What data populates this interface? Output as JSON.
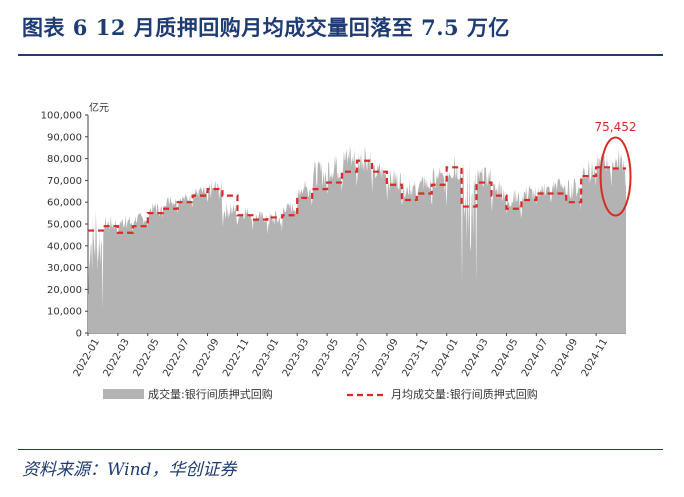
{
  "figure": {
    "title": "图表 6   12 月质押回购月均成交量回落至 7.5 万亿",
    "source": "资料来源：Wind，华创证券"
  },
  "chart_data": {
    "type": "area",
    "ylabel": "亿元",
    "ylim": [
      0,
      100000
    ],
    "yticks": [
      "0",
      "10,000",
      "20,000",
      "30,000",
      "40,000",
      "50,000",
      "60,000",
      "70,000",
      "80,000",
      "90,000",
      "100,000"
    ],
    "xlabels": [
      "2022-01",
      "2022-03",
      "2022-05",
      "2022-07",
      "2022-09",
      "2022-11",
      "2023-01",
      "2023-03",
      "2023-05",
      "2023-07",
      "2023-09",
      "2023-11",
      "2024-01",
      "2024-03",
      "2024-05",
      "2024-07",
      "2024-09",
      "2024-11"
    ],
    "months": [
      "2022-01",
      "2022-02",
      "2022-03",
      "2022-04",
      "2022-05",
      "2022-06",
      "2022-07",
      "2022-08",
      "2022-09",
      "2022-10",
      "2022-11",
      "2022-12",
      "2023-01",
      "2023-02",
      "2023-03",
      "2023-04",
      "2023-05",
      "2023-06",
      "2023-07",
      "2023-08",
      "2023-09",
      "2023-10",
      "2023-11",
      "2023-12",
      "2024-01",
      "2024-02",
      "2024-03",
      "2024-04",
      "2024-05",
      "2024-06",
      "2024-07",
      "2024-08",
      "2024-09",
      "2024-10",
      "2024-11",
      "2024-12"
    ],
    "series": [
      {
        "name": "成交量:银行间质押式回购",
        "style": "area",
        "color": "#b3b3b3",
        "monthly_min": [
          10000,
          42000,
          44000,
          47000,
          50000,
          55000,
          57000,
          59000,
          56000,
          48000,
          49000,
          47000,
          44000,
          52000,
          58000,
          60000,
          63000,
          66000,
          67000,
          64000,
          60000,
          58000,
          60000,
          57000,
          62000,
          10000,
          62000,
          55000,
          52000,
          55000,
          58000,
          61000,
          56000,
          62000,
          68000,
          67000
        ],
        "monthly_max": [
          56000,
          54000,
          54000,
          55000,
          60000,
          63000,
          64000,
          67000,
          70000,
          60000,
          58000,
          56000,
          56000,
          60000,
          70000,
          79000,
          82000,
          86000,
          86000,
          78000,
          75000,
          70000,
          72000,
          76000,
          82000,
          80000,
          76000,
          70000,
          66000,
          68000,
          69000,
          71000,
          71000,
          80000,
          83000,
          84000
        ]
      },
      {
        "name": "月均成交量:银行间质押式回购",
        "style": "dashed-step",
        "color": "#d62b27",
        "values": [
          47000,
          49000,
          46000,
          49000,
          55000,
          57000,
          60000,
          63000,
          66000,
          63000,
          54000,
          52000,
          53000,
          54000,
          62000,
          66000,
          69000,
          74000,
          79000,
          74000,
          68000,
          61000,
          64000,
          68000,
          76000,
          58000,
          69000,
          63000,
          57000,
          61000,
          64000,
          64000,
          60000,
          72000,
          76000,
          75452
        ]
      }
    ],
    "annotation": {
      "text": "75,452",
      "color": "#d62b27",
      "month": "2024-12",
      "value": 75452
    },
    "grid": false,
    "legend_position": "bottom"
  }
}
